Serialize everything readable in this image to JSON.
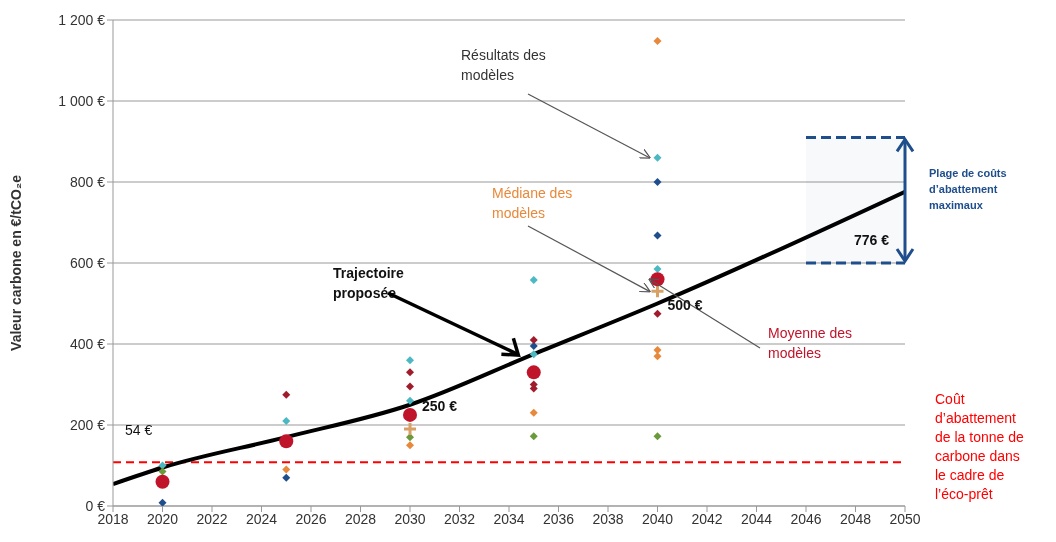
{
  "chart_data": {
    "type": "scatter",
    "ylabel": "Valeur carbone en €/tCO₂e",
    "xlim": [
      2018,
      2050
    ],
    "xticks": [
      2018,
      2020,
      2022,
      2024,
      2026,
      2028,
      2030,
      2032,
      2034,
      2036,
      2038,
      2040,
      2042,
      2044,
      2046,
      2048,
      2050
    ],
    "ylim": [
      0,
      1200
    ],
    "yticks": [
      {
        "value": 0,
        "label": "0 €"
      },
      {
        "value": 200,
        "label": "200 €"
      },
      {
        "value": 400,
        "label": "400 €"
      },
      {
        "value": 600,
        "label": "600 €"
      },
      {
        "value": 800,
        "label": "800 €"
      },
      {
        "value": 1000,
        "label": "1 000 €"
      },
      {
        "value": 1200,
        "label": "1 200 €"
      }
    ],
    "grid": "y",
    "series": [
      {
        "marker": "diamond",
        "color": "#4bb8c4",
        "x": [
          2020,
          2025,
          2030,
          2030,
          2035,
          2035,
          2040,
          2040
        ],
        "values": [
          100,
          210,
          360,
          260,
          558,
          375,
          860,
          585
        ]
      },
      {
        "marker": "diamond",
        "color": "#1f4e8c",
        "x": [
          2020,
          2025,
          2035,
          2040,
          2040
        ],
        "values": [
          8,
          70,
          395,
          800,
          668
        ]
      },
      {
        "marker": "diamond",
        "color": "#a01c2c",
        "x": [
          2025,
          2030,
          2030,
          2035,
          2035,
          2035,
          2040
        ],
        "values": [
          275,
          330,
          295,
          410,
          300,
          290,
          475
        ]
      },
      {
        "marker": "diamond",
        "color": "#e8883a",
        "x": [
          2025,
          2030,
          2035,
          2040,
          2040,
          2040
        ],
        "values": [
          90,
          150,
          230,
          1148,
          385,
          370
        ]
      },
      {
        "marker": "diamond",
        "color": "#6a9a3a",
        "x": [
          2020,
          2030,
          2035,
          2040
        ],
        "values": [
          85,
          170,
          172,
          172
        ]
      },
      {
        "marker": "cross",
        "color": "#d9a066",
        "x": [
          2030,
          2040
        ],
        "values": [
          190,
          530
        ]
      },
      {
        "marker": "circle",
        "color": "#c0142a",
        "x": [
          2020,
          2025,
          2030,
          2035,
          2040
        ],
        "values": [
          60,
          160,
          225,
          330,
          560
        ]
      },
      {
        "type": "line",
        "marker": "none",
        "color": "#000000",
        "x": [
          2018,
          2020,
          2025,
          2030,
          2035,
          2040,
          2050
        ],
        "values": [
          54,
          95,
          170,
          250,
          375,
          500,
          776
        ]
      }
    ],
    "ref_lines": [
      {
        "axis": "y",
        "value": 108,
        "label": "Coût d’abattement de la tonne de carbone dans le cadre de l’éco-prêt",
        "color": "#ff0000",
        "line_style": "dashed"
      }
    ],
    "bands": [
      {
        "axis": "y",
        "from": 600,
        "to": 910,
        "label": "Plage de coûts d’abattement maximaux",
        "color": "#1f4e8c"
      }
    ],
    "annotations": [
      {
        "text": "Résultats des modèles",
        "x": 2040,
        "y": 860
      },
      {
        "text": "Médiane des modèles",
        "x": 2040,
        "y": 530
      },
      {
        "text": "Moyenne des modèles",
        "x": 2040,
        "y": 560
      },
      {
        "text": "Trajectoire proposée",
        "x": 2034.5,
        "y": 365
      },
      "54 €",
      {
        "text": "250 €",
        "x": 2030,
        "y": 250
      },
      {
        "text": "500 €",
        "x": 2040,
        "y": 500
      },
      "776 €"
    ]
  }
}
